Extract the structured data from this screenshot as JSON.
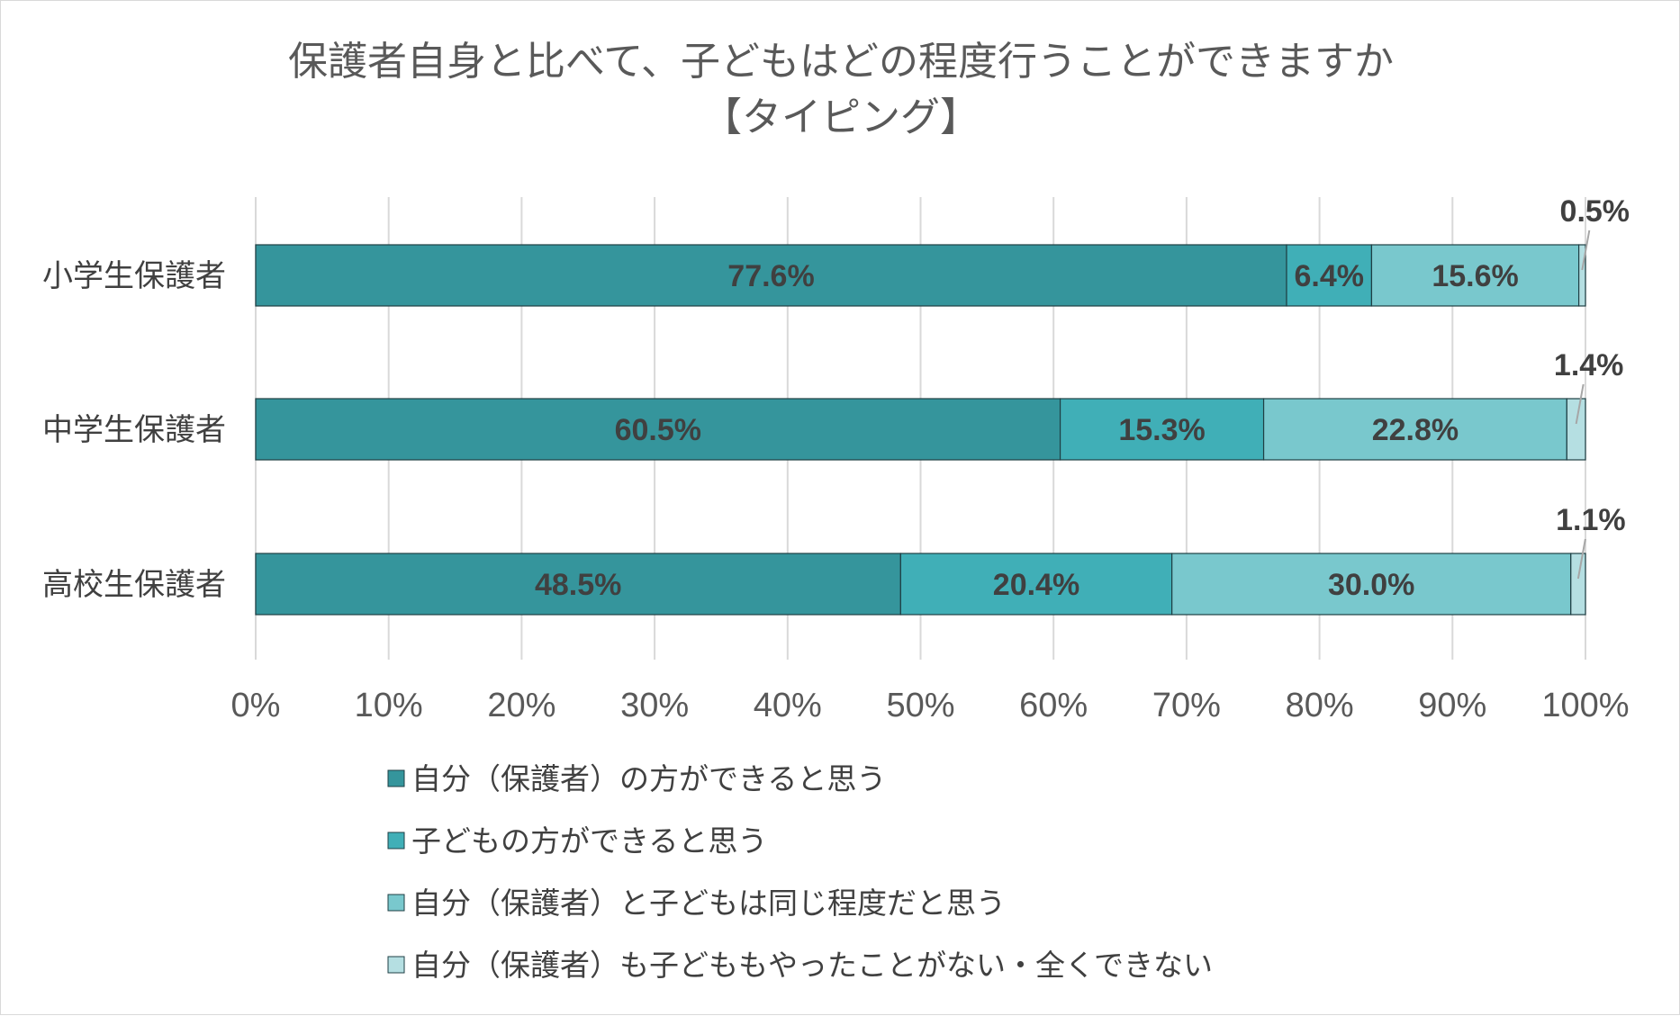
{
  "chart_data": {
    "type": "bar",
    "orientation": "horizontal",
    "stacked": "percent",
    "title": "保護者自身と比べて、子どもはどの程度行うことができますか",
    "subtitle": "【タイピング】",
    "categories": [
      "小学生保護者",
      "中学生保護者",
      "高校生保護者"
    ],
    "series": [
      {
        "name": "自分（保護者）の方ができると思う",
        "color": "#35959c",
        "values": [
          77.6,
          60.5,
          48.5
        ],
        "labels": [
          "77.6%",
          "60.5%",
          "48.5%"
        ]
      },
      {
        "name": "子どもの方ができると思う",
        "color": "#40afb7",
        "values": [
          6.4,
          15.3,
          20.4
        ],
        "labels": [
          "6.4%",
          "15.3%",
          "20.4%"
        ]
      },
      {
        "name": "自分（保護者）と子どもは同じ程度だと思う",
        "color": "#79c8cd",
        "values": [
          15.6,
          22.8,
          30.0
        ],
        "labels": [
          "15.6%",
          "22.8%",
          "30.0%"
        ]
      },
      {
        "name": "自分（保護者）も子どももやったことがない・全くできない",
        "color": "#b5dfe2",
        "values": [
          0.5,
          1.4,
          1.1
        ],
        "labels": [
          "0.5%",
          "1.4%",
          "1.1%"
        ]
      }
    ],
    "xlim": [
      0,
      100
    ],
    "x_ticks": [
      "0%",
      "10%",
      "20%",
      "30%",
      "40%",
      "50%",
      "60%",
      "70%",
      "80%",
      "90%",
      "100%"
    ],
    "grid": true,
    "legend_position": "bottom"
  }
}
